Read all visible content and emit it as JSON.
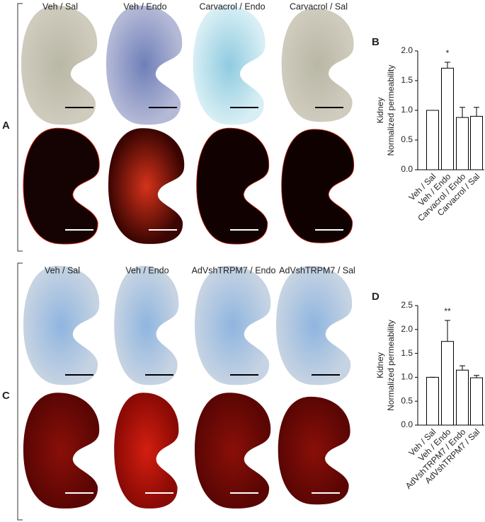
{
  "figure": {
    "panel_labels": [
      "A",
      "B",
      "C",
      "D"
    ],
    "columns_top": [
      "Veh / Sal",
      "Veh / Endo",
      "Carvacrol / Endo",
      "Carvacrol / Sal"
    ],
    "columns_bottom": [
      "Veh / Sal",
      "Veh / Endo",
      "AdVshTRPM7 / Endo",
      "AdVshTRPM7 / Sal"
    ]
  },
  "chart_data": [
    {
      "type": "bar",
      "ylabel": [
        "Kidney",
        "Normalized permeability"
      ],
      "categories": [
        "Veh / Sal",
        "Veh / Endo",
        "Carvacrol / Endo",
        "Carvacrol / Sal"
      ],
      "values": [
        1.0,
        1.71,
        0.88,
        0.9
      ],
      "errors": [
        0,
        0.1,
        0.17,
        0.15
      ],
      "color": "#ffffff",
      "ylim": [
        0,
        2.0
      ],
      "yticks": [
        {
          "value": 0,
          "label": "0.0"
        },
        0.5,
        {
          "value": 1,
          "label": "1.0"
        },
        1.5,
        {
          "value": 2,
          "label": "2.0"
        }
      ],
      "annotations": [
        {
          "text": "*",
          "category": 1
        }
      ]
    },
    {
      "type": "bar",
      "ylabel": [
        "Kidney",
        "Normalized permeability"
      ],
      "categories": [
        "Veh / Sal",
        "Veh / Endo",
        "AdVshTRPM7 / Endo",
        "AdVshTRPM7 / Sal"
      ],
      "values": [
        1.0,
        1.75,
        1.15,
        0.99
      ],
      "errors": [
        0,
        0.44,
        0.09,
        0.05
      ],
      "color": "#ffffff",
      "ylim": [
        0,
        2.5
      ],
      "yticks": [
        {
          "value": 0,
          "label": "0.0"
        },
        0.5,
        {
          "value": 1,
          "label": "1.0"
        },
        1.5,
        {
          "value": 2,
          "label": "2.0"
        },
        2.5
      ],
      "annotations": [
        {
          "text": "**",
          "category": 1
        }
      ]
    }
  ]
}
